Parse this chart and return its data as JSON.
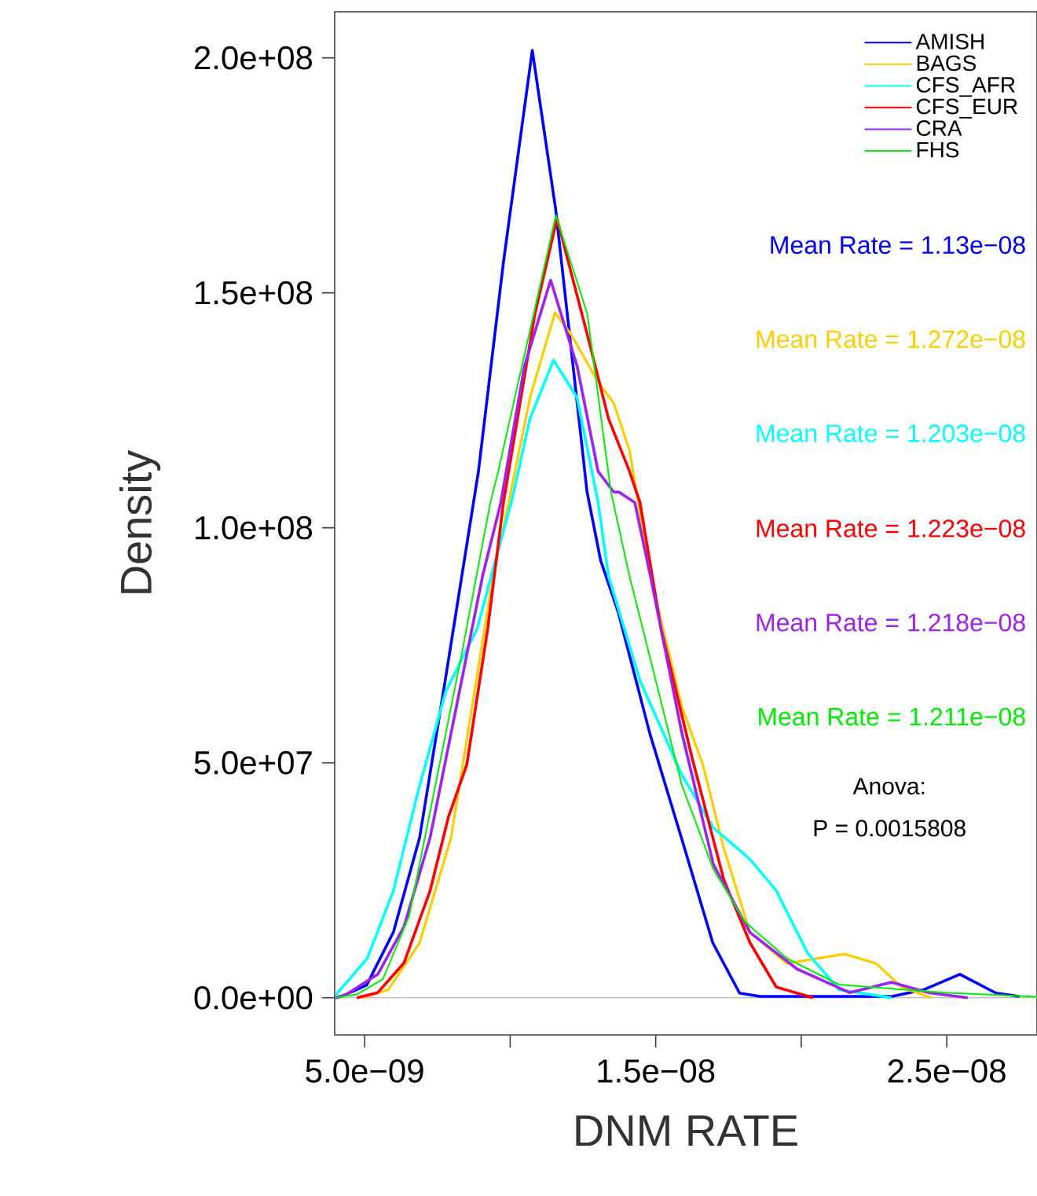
{
  "chart_data": {
    "type": "line",
    "xlabel": "DNM RATE",
    "ylabel": "Density",
    "xlim": [
      3.97e-09,
      2.81e-08
    ],
    "ylim": [
      -7900000.0,
      209800000.0
    ],
    "xticks": [
      {
        "value": 5e-09,
        "label": "5.0e−09"
      },
      {
        "value": 1e-08,
        "label": null
      },
      {
        "value": 1.5e-08,
        "label": "1.5e−08"
      },
      {
        "value": 2e-08,
        "label": null
      },
      {
        "value": 2.5e-08,
        "label": "2.5e−08"
      }
    ],
    "yticks": [
      {
        "value": 0,
        "label": "0.0e+00"
      },
      {
        "value": 50000000.0,
        "label": "5.0e+07"
      },
      {
        "value": 100000000.0,
        "label": "1.0e+08"
      },
      {
        "value": 150000000.0,
        "label": "1.5e+08"
      },
      {
        "value": 200000000.0,
        "label": "2.0e+08"
      }
    ],
    "legend": "top right",
    "grid": false,
    "line_style": "solid",
    "ref_lines": [
      {
        "axis": "y",
        "value": 0,
        "color": "#bebebe"
      }
    ],
    "annotations": [
      "Mean Rate = 1.13e−08",
      "Mean Rate = 1.272e−08",
      "Mean Rate = 1.203e−08",
      "Mean Rate = 1.223e−08",
      "Mean Rate = 1.218e−08",
      "Mean Rate = 1.211e−08",
      "Anova:",
      "P = 0.0015808"
    ],
    "series": [
      {
        "name": "AMISH",
        "color": "#0000ff",
        "x": [
          3.99e-09,
          4.21e-09,
          5.07e-09,
          5.99e-09,
          6.89e-09,
          7.77e-09,
          8.91e-09,
          9.77e-09,
          1.076e-08,
          1.156e-08,
          1.264e-08,
          1.311e-08,
          1.372e-08,
          1.48e-08,
          1.588e-08,
          1.696e-08,
          1.788e-08,
          1.858e-08,
          2.312e-08,
          2.42e-08,
          2.545e-08,
          2.669e-08,
          2.75e-08
        ],
        "values": [
          0,
          300000.0,
          2700000.0,
          14000000.0,
          34100000.0,
          67600000.0,
          112000000.0,
          156600000.0,
          201600000.0,
          167900000.0,
          107700000.0,
          93000000.0,
          81900000.0,
          56200000.0,
          34100000.0,
          11700000.0,
          1000000.0,
          300000.0,
          300000.0,
          1700000.0,
          5000000.0,
          1000000.0,
          300000.0
        ]
      },
      {
        "name": "BAGS",
        "color": "#ffcc00",
        "x": [
          4.91e-09,
          5.81e-09,
          6.89e-09,
          7.97e-09,
          8.69e-09,
          9.41e-09,
          9.95e-09,
          1.068e-08,
          1.154e-08,
          1.211e-08,
          1.302e-08,
          1.356e-08,
          1.41e-08,
          1.482e-08,
          1.59e-08,
          1.662e-08,
          1.734e-08,
          1.824e-08,
          1.95e-08,
          2.149e-08,
          2.257e-08,
          2.347e-08,
          2.446e-08
        ],
        "values": [
          0,
          1700000.0,
          11700000.0,
          34100000.0,
          61900000.0,
          89700000.0,
          105400000.0,
          127700000.0,
          145800000.0,
          141000000.0,
          131000000.0,
          126500000.0,
          116500000.0,
          89700000.0,
          61900000.0,
          49600000.0,
          31800000.0,
          13900000.0,
          7300000.0,
          9300000.0,
          7300000.0,
          2200000.0,
          0
        ]
      },
      {
        "name": "CFS_AFR",
        "color": "#00ffff",
        "x": [
          4.01e-09,
          5.09e-09,
          5.99e-09,
          6.89e-09,
          7.79e-09,
          8.87e-09,
          9.59e-09,
          1.004e-08,
          1.068e-08,
          1.149e-08,
          1.23e-08,
          1.302e-08,
          1.338e-08,
          1.446e-08,
          1.59e-08,
          1.698e-08,
          1.824e-08,
          1.914e-08,
          2.022e-08,
          2.13e-08,
          2.31e-08
        ],
        "values": [
          600000.0,
          8400000.0,
          22800000.0,
          45200000.0,
          65200000.0,
          78600000.0,
          95300000.0,
          105400000.0,
          123200000.0,
          135700000.0,
          127700000.0,
          105400000.0,
          89700000.0,
          67500000.0,
          47400000.0,
          36200000.0,
          29500000.0,
          22800000.0,
          9500000.0,
          1700000.0,
          0
        ]
      },
      {
        "name": "CFS_EUR",
        "color": "#ff0000",
        "x": [
          4.73e-09,
          5.45e-09,
          6.35e-09,
          7.25e-09,
          7.88e-09,
          8.51e-09,
          9.23e-09,
          9.77e-09,
          1.085e-08,
          1.161e-08,
          1.265e-08,
          1.338e-08,
          1.41e-08,
          1.446e-08,
          1.518e-08,
          1.626e-08,
          1.734e-08,
          1.824e-08,
          1.914e-08,
          2.04e-08
        ],
        "values": [
          0,
          1100000.0,
          7400000.0,
          22800000.0,
          38500000.0,
          49600000.0,
          78600000.0,
          105400000.0,
          145500000.0,
          165800000.0,
          141100000.0,
          123200000.0,
          112000000.0,
          105400000.0,
          78600000.0,
          50800000.0,
          25100000.0,
          11700000.0,
          2300000.0,
          0
        ]
      },
      {
        "name": "CRA",
        "color": "#a020f0",
        "x": [
          3.99e-09,
          4.37e-09,
          5.45e-09,
          6.35e-09,
          7.25e-09,
          8.15e-09,
          9.05e-09,
          9.68e-09,
          1.049e-08,
          1.139e-08,
          1.23e-08,
          1.302e-08,
          1.356e-08,
          1.374e-08,
          1.428e-08,
          1.482e-08,
          1.59e-08,
          1.698e-08,
          1.824e-08,
          1.986e-08,
          2.166e-08,
          2.31e-08,
          2.437e-08,
          2.572e-08
        ],
        "values": [
          0,
          700000.0,
          5000000.0,
          15100000.0,
          34100000.0,
          61900000.0,
          89700000.0,
          105400000.0,
          134400000.0,
          152700000.0,
          134400000.0,
          112000000.0,
          107600000.0,
          107600000.0,
          105400000.0,
          89700000.0,
          56300000.0,
          28400000.0,
          13900000.0,
          6100000.0,
          1100000.0,
          3300000.0,
          1100000.0,
          0
        ]
      },
      {
        "name": "FHS",
        "color": "#00ee00",
        "x": [
          3.99e-09,
          4.73e-09,
          5.63e-09,
          6.53e-09,
          7.43e-09,
          8.33e-09,
          9.32e-09,
          9.59e-09,
          1.157e-08,
          1.265e-08,
          1.346e-08,
          1.41e-08,
          1.5e-08,
          1.59e-08,
          1.698e-08,
          1.806e-08,
          1.95e-08,
          2.13e-08,
          2.49e-08,
          2.81e-08
        ],
        "values": [
          0,
          700000.0,
          4000000.0,
          17400000.0,
          45200000.0,
          73000000.0,
          105400000.0,
          112000000.0,
          166500000.0,
          145500000.0,
          107700000.0,
          89700000.0,
          67600000.0,
          45200000.0,
          27400000.0,
          16200000.0,
          8400000.0,
          2800000.0,
          1100000.0,
          200000.0
        ]
      }
    ]
  }
}
